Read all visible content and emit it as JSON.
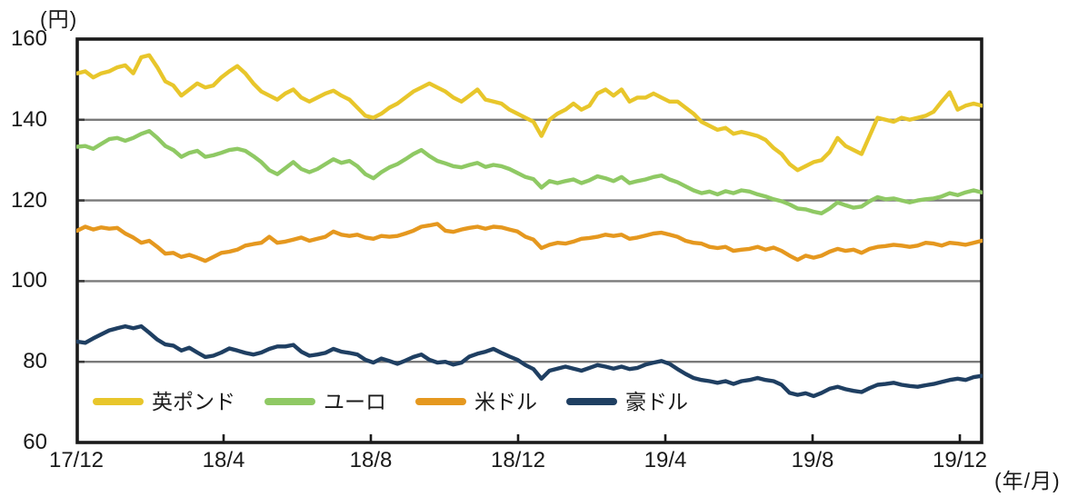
{
  "y_unit_label": "(円)",
  "x_unit_label": "(年/月)",
  "colors": {
    "gbp": "#e8c62b",
    "eur": "#8fc964",
    "usd": "#e5981f",
    "aud": "#1f3f62",
    "gridline": "#7a7a7a",
    "axis": "#1a1a1a",
    "text": "#1a1a1a"
  },
  "chart_data": {
    "type": "line",
    "title": "",
    "y_unit_label": "(円)",
    "x_unit_label": "(年/月)",
    "ylim": [
      60,
      160
    ],
    "yticks": [
      160,
      140,
      120,
      100,
      80,
      60
    ],
    "grid": "horizontal-only",
    "legend_position": "inside-bottom-left",
    "xtick_labels": [
      "17/12",
      "18/4",
      "18/8",
      "18/12",
      "19/4",
      "19/8",
      "19/12"
    ],
    "xtick_months": [
      0,
      4,
      8,
      12,
      16,
      20,
      24
    ],
    "x_range_months": [
      0,
      24.6
    ],
    "interval": "weekly",
    "series": [
      {
        "key": "gbp",
        "name": "英ポンド",
        "color": "#e8c62b",
        "values": [
          151.5,
          152.0,
          150.5,
          151.5,
          152.0,
          153.0,
          153.5,
          151.5,
          155.5,
          156.0,
          153.0,
          149.5,
          148.5,
          146.0,
          147.5,
          149.0,
          148.0,
          148.5,
          150.5,
          152.0,
          153.3,
          151.5,
          149.0,
          147.0,
          146.0,
          145.0,
          146.5,
          147.5,
          145.5,
          144.5,
          145.5,
          146.5,
          147.2,
          146.0,
          145.0,
          143.0,
          141.0,
          140.5,
          141.5,
          143.0,
          144.0,
          145.5,
          147.0,
          148.0,
          149.0,
          148.0,
          147.0,
          145.5,
          144.5,
          146.0,
          147.5,
          145.0,
          144.5,
          144.0,
          142.5,
          141.5,
          140.5,
          139.5,
          136.0,
          140.0,
          141.5,
          142.5,
          144.0,
          142.5,
          143.5,
          146.5,
          147.5,
          146.0,
          147.5,
          144.5,
          145.5,
          145.5,
          146.5,
          145.5,
          144.5,
          144.5,
          143.0,
          141.5,
          139.5,
          138.5,
          137.5,
          138.0,
          136.5,
          137.0,
          136.5,
          136.0,
          135.0,
          133.0,
          131.5,
          129.0,
          127.5,
          128.5,
          129.5,
          130.0,
          132.0,
          135.5,
          133.5,
          132.5,
          131.5,
          136.0,
          140.5,
          140.0,
          139.5,
          140.5,
          140.0,
          140.5,
          141.0,
          142.0,
          144.5,
          146.8,
          142.5,
          143.5,
          144.0,
          143.5
        ]
      },
      {
        "key": "eur",
        "name": "ユーロ",
        "color": "#8fc964",
        "values": [
          133.3,
          133.5,
          132.8,
          134.0,
          135.2,
          135.5,
          134.8,
          135.5,
          136.5,
          137.2,
          135.5,
          133.5,
          132.5,
          130.8,
          131.8,
          132.3,
          130.8,
          131.2,
          131.8,
          132.5,
          132.8,
          132.3,
          131.0,
          129.5,
          127.5,
          126.5,
          128.0,
          129.5,
          127.8,
          127.0,
          127.8,
          129.0,
          130.2,
          129.3,
          129.8,
          128.5,
          126.5,
          125.5,
          127.0,
          128.2,
          129.0,
          130.2,
          131.5,
          132.5,
          131.0,
          129.8,
          129.2,
          128.5,
          128.2,
          128.8,
          129.3,
          128.3,
          128.8,
          128.5,
          127.8,
          126.8,
          125.8,
          125.3,
          123.2,
          124.8,
          124.3,
          124.8,
          125.2,
          124.3,
          125.0,
          126.0,
          125.5,
          124.8,
          125.8,
          124.3,
          124.8,
          125.2,
          125.8,
          126.2,
          125.2,
          124.5,
          123.5,
          122.5,
          121.8,
          122.2,
          121.5,
          122.3,
          121.8,
          122.5,
          122.2,
          121.5,
          121.0,
          120.3,
          119.8,
          119.0,
          118.0,
          117.8,
          117.2,
          116.8,
          118.0,
          119.5,
          118.8,
          118.2,
          118.5,
          119.8,
          120.8,
          120.3,
          120.5,
          120.0,
          119.5,
          120.0,
          120.3,
          120.5,
          121.0,
          121.8,
          121.3,
          122.0,
          122.5,
          122.0
        ]
      },
      {
        "key": "usd",
        "name": "米ドル",
        "color": "#e5981f",
        "values": [
          112.5,
          113.5,
          112.8,
          113.3,
          113.0,
          113.2,
          111.8,
          110.8,
          109.5,
          110.0,
          108.5,
          106.8,
          107.0,
          106.0,
          106.5,
          105.8,
          105.0,
          106.0,
          107.0,
          107.3,
          107.8,
          108.8,
          109.2,
          109.5,
          111.0,
          109.5,
          109.8,
          110.3,
          110.8,
          110.0,
          110.5,
          111.0,
          112.3,
          111.5,
          111.2,
          111.5,
          110.8,
          110.5,
          111.2,
          111.0,
          111.2,
          111.8,
          112.5,
          113.5,
          113.8,
          114.2,
          112.5,
          112.2,
          112.8,
          113.2,
          113.5,
          113.0,
          113.5,
          113.3,
          112.8,
          112.3,
          111.0,
          110.3,
          108.2,
          109.0,
          109.5,
          109.3,
          109.8,
          110.5,
          110.7,
          111.0,
          111.5,
          111.2,
          111.5,
          110.5,
          110.8,
          111.3,
          111.8,
          112.0,
          111.5,
          111.0,
          110.0,
          109.5,
          109.3,
          108.5,
          108.2,
          108.5,
          107.5,
          107.8,
          108.0,
          108.5,
          107.8,
          108.3,
          107.5,
          106.3,
          105.3,
          106.3,
          105.8,
          106.3,
          107.3,
          108.0,
          107.5,
          107.8,
          107.0,
          108.0,
          108.5,
          108.7,
          109.0,
          108.8,
          108.5,
          108.8,
          109.5,
          109.3,
          108.8,
          109.5,
          109.3,
          109.0,
          109.5,
          110.0
        ]
      },
      {
        "key": "aud",
        "name": "豪ドル",
        "color": "#1f3f62",
        "values": [
          85.0,
          84.7,
          85.8,
          86.8,
          87.8,
          88.3,
          88.8,
          88.3,
          88.8,
          87.2,
          85.5,
          84.3,
          84.0,
          82.8,
          83.5,
          82.3,
          81.2,
          81.5,
          82.3,
          83.3,
          82.8,
          82.2,
          81.8,
          82.3,
          83.2,
          83.8,
          83.8,
          84.2,
          82.5,
          81.5,
          81.8,
          82.2,
          83.2,
          82.5,
          82.2,
          81.8,
          80.5,
          79.8,
          80.8,
          80.2,
          79.5,
          80.3,
          81.2,
          81.8,
          80.5,
          79.8,
          80.0,
          79.3,
          79.8,
          81.3,
          82.0,
          82.5,
          83.2,
          82.2,
          81.3,
          80.5,
          79.2,
          78.2,
          75.8,
          77.8,
          78.3,
          78.8,
          78.3,
          77.8,
          78.5,
          79.2,
          78.8,
          78.3,
          78.8,
          78.2,
          78.5,
          79.3,
          79.8,
          80.2,
          79.5,
          78.2,
          77.0,
          76.0,
          75.5,
          75.2,
          74.8,
          75.2,
          74.5,
          75.2,
          75.5,
          76.0,
          75.5,
          75.2,
          74.3,
          72.3,
          71.8,
          72.2,
          71.5,
          72.3,
          73.3,
          73.8,
          73.2,
          72.8,
          72.5,
          73.5,
          74.3,
          74.5,
          74.8,
          74.3,
          74.0,
          73.8,
          74.2,
          74.5,
          75.0,
          75.5,
          75.8,
          75.5,
          76.2,
          76.5
        ]
      }
    ]
  }
}
